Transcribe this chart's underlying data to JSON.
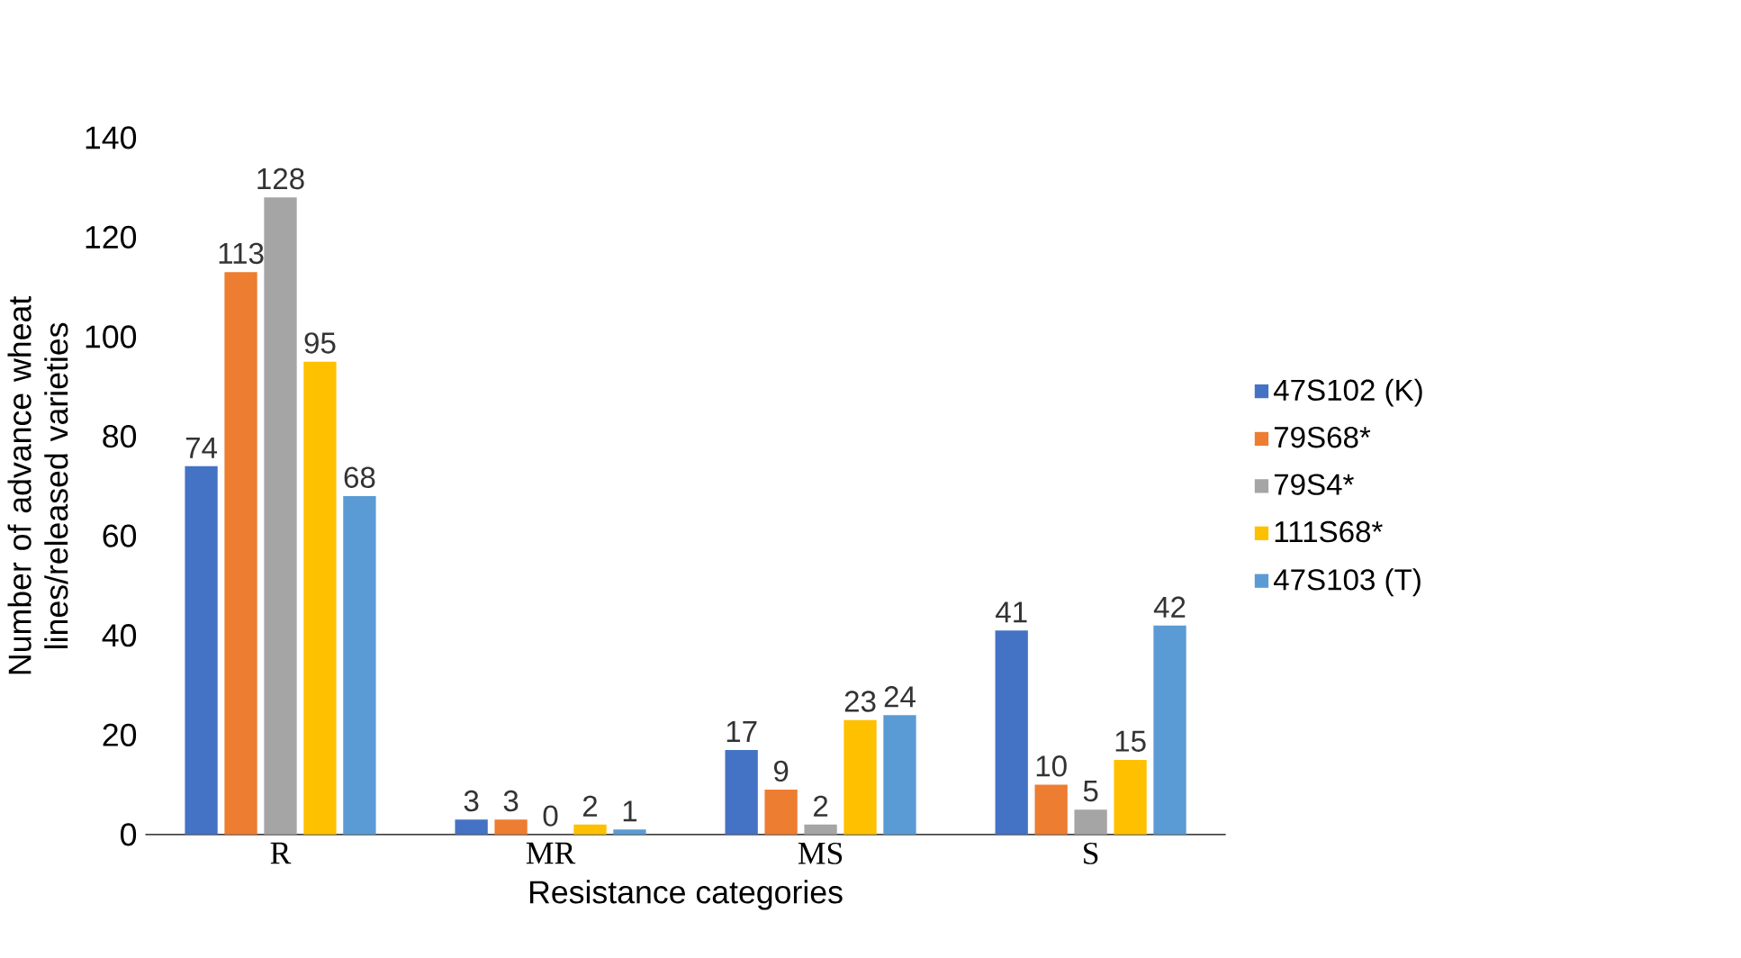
{
  "chart_data": {
    "type": "bar",
    "xlabel": "Resistance categories",
    "ylabel": "Number of advance wheat lines/released varieties",
    "categories": [
      "R",
      "MR",
      "MS",
      "S"
    ],
    "series": [
      {
        "name": "47S102 (K)",
        "color": "#4472c4",
        "values": [
          74,
          3,
          17,
          41
        ]
      },
      {
        "name": "79S68*",
        "color": "#ed7d31",
        "values": [
          113,
          3,
          9,
          10
        ]
      },
      {
        "name": "79S4*",
        "color": "#a5a5a5",
        "values": [
          128,
          0,
          2,
          5
        ]
      },
      {
        "name": "111S68*",
        "color": "#ffc000",
        "values": [
          95,
          2,
          23,
          15
        ]
      },
      {
        "name": "47S103 (T)",
        "color": "#5b9bd5",
        "values": [
          68,
          1,
          24,
          42
        ]
      }
    ],
    "ylim": [
      0,
      140
    ],
    "yticks": [
      0,
      20,
      40,
      60,
      80,
      100,
      120,
      140
    ],
    "grid": false,
    "legend": "right",
    "data_labels": true
  }
}
